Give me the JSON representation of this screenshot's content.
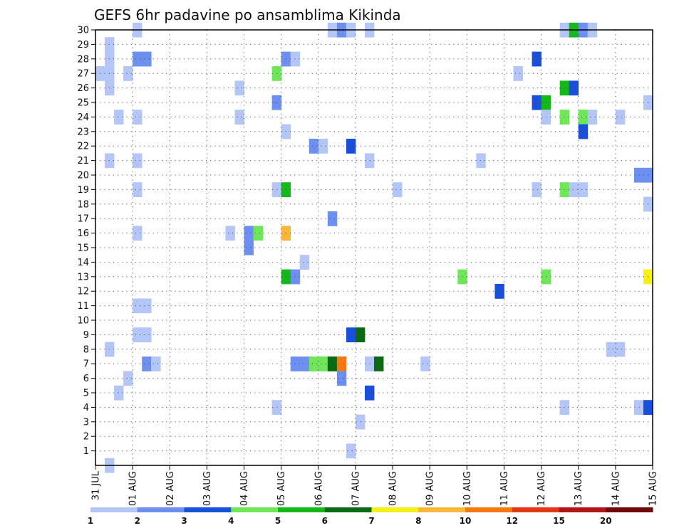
{
  "chart_data": {
    "type": "heatmap",
    "title": "GEFS 6hr padavine po ansamblima Kikinda",
    "xlabel": "",
    "ylabel": "",
    "x_ticks": [
      "31 JUL",
      "01 AUG",
      "02 AUG",
      "03 AUG",
      "04 AUG",
      "05 AUG",
      "06 AUG",
      "07 AUG",
      "08 AUG",
      "09 AUG",
      "10 AUG",
      "11 AUG",
      "12 AUG",
      "13 AUG",
      "14 AUG",
      "15 AUG"
    ],
    "xlim_days": [
      0,
      15
    ],
    "time_step_hours": 6,
    "y_ticks": [
      1,
      2,
      3,
      4,
      5,
      6,
      7,
      8,
      9,
      10,
      11,
      12,
      13,
      14,
      15,
      16,
      17,
      18,
      19,
      20,
      21,
      22,
      23,
      24,
      25,
      26,
      27,
      28,
      29,
      30
    ],
    "ylim": [
      0,
      30
    ],
    "grid": true,
    "colorbar": {
      "levels": [
        "1",
        "2",
        "3",
        "4",
        "5",
        "6",
        "7",
        "8",
        "10",
        "12",
        "15",
        "20"
      ],
      "colors": [
        "#b3c6f7",
        "#6d8ff0",
        "#1a4fdb",
        "#6fe65a",
        "#15b81b",
        "#0a6a12",
        "#f5f01a",
        "#fbb638",
        "#f6780e",
        "#e5361a",
        "#b21414",
        "#6e0a0a"
      ]
    },
    "cells": [
      {
        "ens": 30,
        "step": 4,
        "cat": 1
      },
      {
        "ens": 30,
        "step": 25,
        "cat": 1
      },
      {
        "ens": 30,
        "step": 26,
        "cat": 2
      },
      {
        "ens": 30,
        "step": 27,
        "cat": 1
      },
      {
        "ens": 30,
        "step": 29,
        "cat": 1
      },
      {
        "ens": 30,
        "step": 50,
        "cat": 1
      },
      {
        "ens": 30,
        "step": 51,
        "cat": 5
      },
      {
        "ens": 30,
        "step": 52,
        "cat": 2
      },
      {
        "ens": 30,
        "step": 53,
        "cat": 1
      },
      {
        "ens": 29,
        "step": 1,
        "cat": 1
      },
      {
        "ens": 28,
        "step": 1,
        "cat": 1
      },
      {
        "ens": 28,
        "step": 4,
        "cat": 2
      },
      {
        "ens": 28,
        "step": 5,
        "cat": 2
      },
      {
        "ens": 28,
        "step": 20,
        "cat": 2
      },
      {
        "ens": 28,
        "step": 21,
        "cat": 1
      },
      {
        "ens": 28,
        "step": 47,
        "cat": 3
      },
      {
        "ens": 27,
        "step": 0,
        "cat": 1
      },
      {
        "ens": 27,
        "step": 1,
        "cat": 1
      },
      {
        "ens": 27,
        "step": 3,
        "cat": 1
      },
      {
        "ens": 27,
        "step": 19,
        "cat": 4
      },
      {
        "ens": 27,
        "step": 45,
        "cat": 1
      },
      {
        "ens": 26,
        "step": 1,
        "cat": 1
      },
      {
        "ens": 26,
        "step": 15,
        "cat": 1
      },
      {
        "ens": 26,
        "step": 50,
        "cat": 5
      },
      {
        "ens": 26,
        "step": 51,
        "cat": 3
      },
      {
        "ens": 25,
        "step": 19,
        "cat": 2
      },
      {
        "ens": 25,
        "step": 47,
        "cat": 3
      },
      {
        "ens": 25,
        "step": 48,
        "cat": 5
      },
      {
        "ens": 25,
        "step": 59,
        "cat": 1
      },
      {
        "ens": 24,
        "step": 2,
        "cat": 1
      },
      {
        "ens": 24,
        "step": 4,
        "cat": 1
      },
      {
        "ens": 24,
        "step": 15,
        "cat": 1
      },
      {
        "ens": 24,
        "step": 48,
        "cat": 1
      },
      {
        "ens": 24,
        "step": 50,
        "cat": 4
      },
      {
        "ens": 24,
        "step": 52,
        "cat": 4
      },
      {
        "ens": 24,
        "step": 53,
        "cat": 1
      },
      {
        "ens": 24,
        "step": 56,
        "cat": 1
      },
      {
        "ens": 23,
        "step": 20,
        "cat": 1
      },
      {
        "ens": 23,
        "step": 52,
        "cat": 3
      },
      {
        "ens": 22,
        "step": 23,
        "cat": 2
      },
      {
        "ens": 22,
        "step": 24,
        "cat": 1
      },
      {
        "ens": 22,
        "step": 27,
        "cat": 3
      },
      {
        "ens": 21,
        "step": 1,
        "cat": 1
      },
      {
        "ens": 21,
        "step": 4,
        "cat": 1
      },
      {
        "ens": 21,
        "step": 29,
        "cat": 1
      },
      {
        "ens": 21,
        "step": 41,
        "cat": 1
      },
      {
        "ens": 20,
        "step": 58,
        "cat": 2
      },
      {
        "ens": 20,
        "step": 59,
        "cat": 2
      },
      {
        "ens": 19,
        "step": 4,
        "cat": 1
      },
      {
        "ens": 19,
        "step": 19,
        "cat": 1
      },
      {
        "ens": 19,
        "step": 20,
        "cat": 5
      },
      {
        "ens": 19,
        "step": 32,
        "cat": 1
      },
      {
        "ens": 19,
        "step": 47,
        "cat": 1
      },
      {
        "ens": 19,
        "step": 50,
        "cat": 4
      },
      {
        "ens": 19,
        "step": 51,
        "cat": 1
      },
      {
        "ens": 19,
        "step": 52,
        "cat": 1
      },
      {
        "ens": 18,
        "step": 59,
        "cat": 1
      },
      {
        "ens": 17,
        "step": 25,
        "cat": 2
      },
      {
        "ens": 16,
        "step": 4,
        "cat": 1
      },
      {
        "ens": 16,
        "step": 14,
        "cat": 1
      },
      {
        "ens": 16,
        "step": 16,
        "cat": 2
      },
      {
        "ens": 16,
        "step": 17,
        "cat": 4
      },
      {
        "ens": 16,
        "step": 20,
        "cat": 8
      },
      {
        "ens": 15,
        "step": 16,
        "cat": 2
      },
      {
        "ens": 14,
        "step": 22,
        "cat": 1
      },
      {
        "ens": 13,
        "step": 20,
        "cat": 5
      },
      {
        "ens": 13,
        "step": 21,
        "cat": 2
      },
      {
        "ens": 13,
        "step": 39,
        "cat": 4
      },
      {
        "ens": 13,
        "step": 48,
        "cat": 4
      },
      {
        "ens": 13,
        "step": 59,
        "cat": 7
      },
      {
        "ens": 12,
        "step": 43,
        "cat": 3
      },
      {
        "ens": 11,
        "step": 4,
        "cat": 1
      },
      {
        "ens": 11,
        "step": 5,
        "cat": 1
      },
      {
        "ens": 9,
        "step": 4,
        "cat": 1
      },
      {
        "ens": 9,
        "step": 5,
        "cat": 1
      },
      {
        "ens": 9,
        "step": 27,
        "cat": 3
      },
      {
        "ens": 9,
        "step": 28,
        "cat": 6
      },
      {
        "ens": 8,
        "step": 1,
        "cat": 1
      },
      {
        "ens": 8,
        "step": 55,
        "cat": 1
      },
      {
        "ens": 8,
        "step": 56,
        "cat": 1
      },
      {
        "ens": 7,
        "step": 5,
        "cat": 2
      },
      {
        "ens": 7,
        "step": 6,
        "cat": 1
      },
      {
        "ens": 7,
        "step": 21,
        "cat": 2
      },
      {
        "ens": 7,
        "step": 22,
        "cat": 2
      },
      {
        "ens": 7,
        "step": 23,
        "cat": 4
      },
      {
        "ens": 7,
        "step": 24,
        "cat": 4
      },
      {
        "ens": 7,
        "step": 25,
        "cat": 6
      },
      {
        "ens": 7,
        "step": 26,
        "cat": 9
      },
      {
        "ens": 7,
        "step": 29,
        "cat": 1
      },
      {
        "ens": 7,
        "step": 30,
        "cat": 6
      },
      {
        "ens": 7,
        "step": 35,
        "cat": 1
      },
      {
        "ens": 6,
        "step": 3,
        "cat": 1
      },
      {
        "ens": 6,
        "step": 26,
        "cat": 2
      },
      {
        "ens": 5,
        "step": 2,
        "cat": 1
      },
      {
        "ens": 5,
        "step": 29,
        "cat": 3
      },
      {
        "ens": 4,
        "step": 19,
        "cat": 1
      },
      {
        "ens": 4,
        "step": 50,
        "cat": 1
      },
      {
        "ens": 4,
        "step": 58,
        "cat": 1
      },
      {
        "ens": 4,
        "step": 59,
        "cat": 3
      },
      {
        "ens": 3,
        "step": 28,
        "cat": 1
      },
      {
        "ens": 1,
        "step": 27,
        "cat": 1
      },
      {
        "ens": 0,
        "step": 1,
        "cat": 1
      }
    ]
  }
}
